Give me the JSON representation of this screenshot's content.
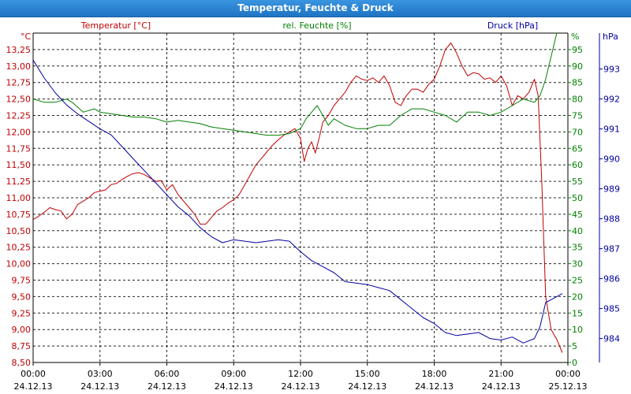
{
  "window": {
    "title": "Temperatur, Feuchte & Druck"
  },
  "colors": {
    "temperature": "#c00000",
    "humidity": "#008000",
    "pressure": "#0000a0",
    "axis": "#000000",
    "grid": "#000000"
  },
  "chart_data": {
    "type": "line",
    "title": "Temperatur, Feuchte & Druck",
    "grid": true,
    "x_ticks": [
      {
        "time": "00:00",
        "date": "24.12.13"
      },
      {
        "time": "03:00",
        "date": "24.12.13"
      },
      {
        "time": "06:00",
        "date": "24.12.13"
      },
      {
        "time": "09:00",
        "date": "24.12.13"
      },
      {
        "time": "12:00",
        "date": "24.12.13"
      },
      {
        "time": "15:00",
        "date": "24.12.13"
      },
      {
        "time": "18:00",
        "date": "24.12.13"
      },
      {
        "time": "21:00",
        "date": "24.12.13"
      },
      {
        "time": "00:00",
        "date": "25.12.13"
      }
    ],
    "axes": {
      "temperature": {
        "label": "Temperatur [°C]",
        "unit": "°C",
        "range": [
          8.5,
          13.5
        ],
        "ticks": [
          "8,50",
          "8,75",
          "9,00",
          "9,25",
          "9,50",
          "9,75",
          "10,00",
          "10,25",
          "10,50",
          "10,75",
          "11,00",
          "11,25",
          "11,50",
          "11,75",
          "12,00",
          "12,25",
          "12,50",
          "12,75",
          "13,00",
          "13,25"
        ]
      },
      "humidity": {
        "label": "rel. Feuchte [%]",
        "unit": "%",
        "range": [
          0,
          100
        ],
        "ticks": [
          "0",
          "5",
          "10",
          "15",
          "20",
          "25",
          "30",
          "35",
          "40",
          "45",
          "50",
          "55",
          "60",
          "65",
          "70",
          "75",
          "80",
          "85",
          "90",
          "95"
        ]
      },
      "pressure": {
        "label": "Druck [hPa]",
        "unit": "hPa",
        "range": [
          983.2,
          994.2
        ],
        "ticks": [
          "984",
          "985",
          "986",
          "987",
          "988",
          "989",
          "990",
          "991",
          "992",
          "993"
        ]
      }
    },
    "series": [
      {
        "name": "Temperatur [°C]",
        "axis": "temperature",
        "points": [
          [
            "24.12.13 00:00",
            10.67
          ],
          [
            "24.12.13 00:15",
            10.72
          ],
          [
            "24.12.13 00:30",
            10.78
          ],
          [
            "24.12.13 00:45",
            10.85
          ],
          [
            "24.12.13 01:00",
            10.82
          ],
          [
            "24.12.13 01:15",
            10.8
          ],
          [
            "24.12.13 01:30",
            10.68
          ],
          [
            "24.12.13 01:45",
            10.75
          ],
          [
            "24.12.13 02:00",
            10.9
          ],
          [
            "24.12.13 02:15",
            10.95
          ],
          [
            "24.12.13 02:30",
            11.0
          ],
          [
            "24.12.13 02:45",
            11.08
          ],
          [
            "24.12.13 03:00",
            11.1
          ],
          [
            "24.12.13 03:15",
            11.12
          ],
          [
            "24.12.13 03:30",
            11.2
          ],
          [
            "24.12.13 03:45",
            11.22
          ],
          [
            "24.12.13 04:00",
            11.28
          ],
          [
            "24.12.13 04:15",
            11.33
          ],
          [
            "24.12.13 04:30",
            11.37
          ],
          [
            "24.12.13 04:45",
            11.38
          ],
          [
            "24.12.13 05:00",
            11.35
          ],
          [
            "24.12.13 05:15",
            11.3
          ],
          [
            "24.12.13 05:30",
            11.25
          ],
          [
            "24.12.13 05:45",
            11.26
          ],
          [
            "24.12.13 06:00",
            11.12
          ],
          [
            "24.12.13 06:15",
            11.2
          ],
          [
            "24.12.13 06:30",
            11.05
          ],
          [
            "24.12.13 06:45",
            10.95
          ],
          [
            "24.12.13 07:00",
            10.85
          ],
          [
            "24.12.13 07:15",
            10.75
          ],
          [
            "24.12.13 07:30",
            10.6
          ],
          [
            "24.12.13 07:45",
            10.6
          ],
          [
            "24.12.13 08:00",
            10.7
          ],
          [
            "24.12.13 08:15",
            10.8
          ],
          [
            "24.12.13 08:30",
            10.85
          ],
          [
            "24.12.13 08:45",
            10.92
          ],
          [
            "24.12.13 09:00",
            10.97
          ],
          [
            "24.12.13 09:15",
            11.05
          ],
          [
            "24.12.13 09:30",
            11.2
          ],
          [
            "24.12.13 09:45",
            11.35
          ],
          [
            "24.12.13 10:00",
            11.5
          ],
          [
            "24.12.13 10:15",
            11.6
          ],
          [
            "24.12.13 10:30",
            11.7
          ],
          [
            "24.12.13 10:45",
            11.8
          ],
          [
            "24.12.13 11:00",
            11.88
          ],
          [
            "24.12.13 11:15",
            11.95
          ],
          [
            "24.12.13 11:30",
            12.0
          ],
          [
            "24.12.13 11:45",
            12.05
          ],
          [
            "24.12.13 12:00",
            11.9
          ],
          [
            "24.12.13 12:10",
            11.55
          ],
          [
            "24.12.13 12:20",
            11.75
          ],
          [
            "24.12.13 12:30",
            11.85
          ],
          [
            "24.12.13 12:40",
            11.68
          ],
          [
            "24.12.13 12:50",
            11.9
          ],
          [
            "24.12.13 13:00",
            12.15
          ],
          [
            "24.12.13 13:15",
            12.25
          ],
          [
            "24.12.13 13:30",
            12.4
          ],
          [
            "24.12.13 13:45",
            12.5
          ],
          [
            "24.12.13 14:00",
            12.6
          ],
          [
            "24.12.13 14:15",
            12.75
          ],
          [
            "24.12.13 14:30",
            12.85
          ],
          [
            "24.12.13 14:45",
            12.8
          ],
          [
            "24.12.13 15:00",
            12.78
          ],
          [
            "24.12.13 15:15",
            12.82
          ],
          [
            "24.12.13 15:30",
            12.75
          ],
          [
            "24.12.13 15:45",
            12.85
          ],
          [
            "24.12.13 16:00",
            12.7
          ],
          [
            "24.12.13 16:15",
            12.45
          ],
          [
            "24.12.13 16:30",
            12.4
          ],
          [
            "24.12.13 16:45",
            12.55
          ],
          [
            "24.12.13 17:00",
            12.65
          ],
          [
            "24.12.13 17:15",
            12.65
          ],
          [
            "24.12.13 17:30",
            12.6
          ],
          [
            "24.12.13 17:45",
            12.72
          ],
          [
            "24.12.13 18:00",
            12.8
          ],
          [
            "24.12.13 18:15",
            13.0
          ],
          [
            "24.12.13 18:30",
            13.25
          ],
          [
            "24.12.13 18:45",
            13.35
          ],
          [
            "24.12.13 19:00",
            13.2
          ],
          [
            "24.12.13 19:15",
            13.0
          ],
          [
            "24.12.13 19:30",
            12.85
          ],
          [
            "24.12.13 19:45",
            12.9
          ],
          [
            "24.12.13 20:00",
            12.88
          ],
          [
            "24.12.13 20:15",
            12.8
          ],
          [
            "24.12.13 20:30",
            12.82
          ],
          [
            "24.12.13 20:45",
            12.75
          ],
          [
            "24.12.13 21:00",
            12.85
          ],
          [
            "24.12.13 21:15",
            12.7
          ],
          [
            "24.12.13 21:30",
            12.4
          ],
          [
            "24.12.13 21:45",
            12.55
          ],
          [
            "24.12.13 22:00",
            12.5
          ],
          [
            "24.12.13 22:15",
            12.6
          ],
          [
            "24.12.13 22:30",
            12.8
          ],
          [
            "24.12.13 22:40",
            12.55
          ],
          [
            "24.12.13 22:50",
            11.2
          ],
          [
            "24.12.13 23:00",
            9.5
          ],
          [
            "24.12.13 23:15",
            9.0
          ],
          [
            "24.12.13 23:30",
            8.85
          ],
          [
            "24.12.13 23:45",
            8.65
          ]
        ]
      },
      {
        "name": "rel. Feuchte [%]",
        "axis": "humidity",
        "points": [
          [
            "24.12.13 00:00",
            80
          ],
          [
            "24.12.13 00:30",
            79
          ],
          [
            "24.12.13 01:00",
            79
          ],
          [
            "24.12.13 01:30",
            80
          ],
          [
            "24.12.13 01:45",
            79
          ],
          [
            "24.12.13 02:15",
            76
          ],
          [
            "24.12.13 02:45",
            77
          ],
          [
            "24.12.13 03:00",
            76
          ],
          [
            "24.12.13 03:30",
            75.5
          ],
          [
            "24.12.13 04:00",
            75
          ],
          [
            "24.12.13 04:30",
            74.5
          ],
          [
            "24.12.13 05:00",
            74.5
          ],
          [
            "24.12.13 05:30",
            74
          ],
          [
            "24.12.13 06:00",
            73
          ],
          [
            "24.12.13 06:30",
            73.5
          ],
          [
            "24.12.13 07:00",
            73
          ],
          [
            "24.12.13 07:30",
            72.5
          ],
          [
            "24.12.13 08:00",
            71.5
          ],
          [
            "24.12.13 08:30",
            71
          ],
          [
            "24.12.13 09:00",
            70.5
          ],
          [
            "24.12.13 09:30",
            70
          ],
          [
            "24.12.13 10:00",
            69.5
          ],
          [
            "24.12.13 10:30",
            69
          ],
          [
            "24.12.13 11:00",
            69
          ],
          [
            "24.12.13 11:30",
            69.5
          ],
          [
            "24.12.13 12:00",
            71
          ],
          [
            "24.12.13 12:15",
            74
          ],
          [
            "24.12.13 12:30",
            76
          ],
          [
            "24.12.13 12:45",
            78
          ],
          [
            "24.12.13 13:00",
            75
          ],
          [
            "24.12.13 13:15",
            72
          ],
          [
            "24.12.13 13:30",
            74
          ],
          [
            "24.12.13 14:00",
            72
          ],
          [
            "24.12.13 14:30",
            71
          ],
          [
            "24.12.13 15:00",
            71
          ],
          [
            "24.12.13 15:30",
            72
          ],
          [
            "24.12.13 16:00",
            72
          ],
          [
            "24.12.13 16:30",
            75
          ],
          [
            "24.12.13 17:00",
            77
          ],
          [
            "24.12.13 17:30",
            77
          ],
          [
            "24.12.13 18:00",
            76
          ],
          [
            "24.12.13 18:30",
            75
          ],
          [
            "24.12.13 19:00",
            73
          ],
          [
            "24.12.13 19:30",
            76
          ],
          [
            "24.12.13 20:00",
            76
          ],
          [
            "24.12.13 20:30",
            75
          ],
          [
            "24.12.13 21:00",
            76
          ],
          [
            "24.12.13 21:30",
            78
          ],
          [
            "24.12.13 22:00",
            80
          ],
          [
            "24.12.13 22:30",
            79
          ],
          [
            "24.12.13 22:45",
            81
          ],
          [
            "24.12.13 23:00",
            86
          ],
          [
            "24.12.13 23:15",
            93
          ],
          [
            "24.12.13 23:30",
            100
          ]
        ]
      },
      {
        "name": "Druck [hPa]",
        "axis": "pressure",
        "points": [
          [
            "24.12.13 00:00",
            993.3
          ],
          [
            "24.12.13 00:30",
            992.7
          ],
          [
            "24.12.13 01:00",
            992.2
          ],
          [
            "24.12.13 01:30",
            991.8
          ],
          [
            "24.12.13 02:00",
            991.5
          ],
          [
            "24.12.13 02:30",
            991.25
          ],
          [
            "24.12.13 03:00",
            991.0
          ],
          [
            "24.12.13 03:30",
            990.8
          ],
          [
            "24.12.13 04:00",
            990.4
          ],
          [
            "24.12.13 04:30",
            990.0
          ],
          [
            "24.12.13 05:00",
            989.6
          ],
          [
            "24.12.13 05:30",
            989.2
          ],
          [
            "24.12.13 06:00",
            988.8
          ],
          [
            "24.12.13 06:30",
            988.4
          ],
          [
            "24.12.13 07:00",
            988.1
          ],
          [
            "24.12.13 07:30",
            987.7
          ],
          [
            "24.12.13 08:00",
            987.4
          ],
          [
            "24.12.13 08:30",
            987.2
          ],
          [
            "24.12.13 09:00",
            987.3
          ],
          [
            "24.12.13 09:30",
            987.25
          ],
          [
            "24.12.13 10:00",
            987.2
          ],
          [
            "24.12.13 10:30",
            987.25
          ],
          [
            "24.12.13 11:00",
            987.3
          ],
          [
            "24.12.13 11:30",
            987.25
          ],
          [
            "24.12.13 12:00",
            986.9
          ],
          [
            "24.12.13 12:30",
            986.6
          ],
          [
            "24.12.13 13:00",
            986.4
          ],
          [
            "24.12.13 13:30",
            986.2
          ],
          [
            "24.12.13 14:00",
            985.9
          ],
          [
            "24.12.13 14:30",
            985.85
          ],
          [
            "24.12.13 15:00",
            985.8
          ],
          [
            "24.12.13 15:30",
            985.7
          ],
          [
            "24.12.13 16:00",
            985.6
          ],
          [
            "24.12.13 16:30",
            985.3
          ],
          [
            "24.12.13 17:00",
            985.0
          ],
          [
            "24.12.13 17:30",
            984.7
          ],
          [
            "24.12.13 18:00",
            984.5
          ],
          [
            "24.12.13 18:30",
            984.2
          ],
          [
            "24.12.13 19:00",
            984.1
          ],
          [
            "24.12.13 19:30",
            984.15
          ],
          [
            "24.12.13 20:00",
            984.2
          ],
          [
            "24.12.13 20:30",
            984.0
          ],
          [
            "24.12.13 21:00",
            983.95
          ],
          [
            "24.12.13 21:30",
            984.05
          ],
          [
            "24.12.13 22:00",
            983.85
          ],
          [
            "24.12.13 22:30",
            984.0
          ],
          [
            "24.12.13 22:45",
            984.4
          ],
          [
            "24.12.13 23:00",
            985.2
          ],
          [
            "24.12.13 23:15",
            985.3
          ],
          [
            "24.12.13 23:30",
            985.4
          ],
          [
            "24.12.13 23:45",
            985.5
          ]
        ]
      }
    ]
  }
}
